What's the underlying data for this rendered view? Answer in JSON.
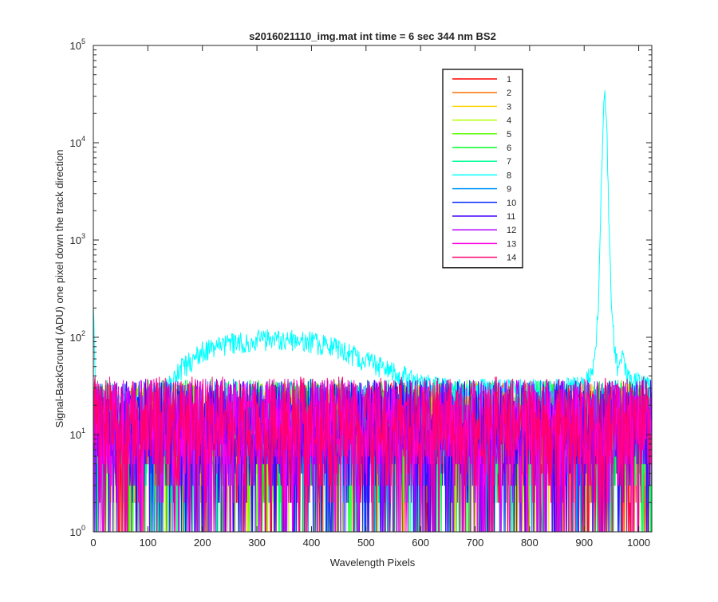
{
  "chart_data": {
    "type": "line",
    "title": "s2016021110_img.mat int time = 6 sec  344 nm BS2",
    "xlabel": "Wavelength Pixels",
    "ylabel": "Signal-BackGround (ADU) one pixel down the track direction",
    "x_range": [
      0,
      1024
    ],
    "y_range": [
      1,
      100000
    ],
    "y_scale": "log",
    "x_ticks": [
      "0",
      "100",
      "200",
      "300",
      "400",
      "500",
      "600",
      "700",
      "800",
      "900",
      "1000"
    ],
    "y_tick_bases": [
      "10",
      "10",
      "10",
      "10",
      "10",
      "10"
    ],
    "y_tick_exps": [
      "0",
      "1",
      "2",
      "3",
      "4",
      "5"
    ],
    "grid": false,
    "legend_position": "top-right",
    "series": [
      {
        "name": "1",
        "color": "#ff0000",
        "noise_level": 12
      },
      {
        "name": "2",
        "color": "#ff6f00",
        "noise_level": 12
      },
      {
        "name": "3",
        "color": "#ffd400",
        "noise_level": 12
      },
      {
        "name": "4",
        "color": "#b4ff00",
        "noise_level": 12
      },
      {
        "name": "5",
        "color": "#5cff00",
        "noise_level": 13
      },
      {
        "name": "6",
        "color": "#00ff27",
        "noise_level": 13
      },
      {
        "name": "7",
        "color": "#00ff97",
        "noise_level": 13
      },
      {
        "name": "8",
        "color": "#00ffff",
        "noise_level": 14,
        "profile": {
          "x": [
            0,
            2,
            5,
            10,
            60,
            100,
            130,
            160,
            200,
            250,
            300,
            350,
            400,
            450,
            500,
            550,
            600,
            650,
            700,
            750,
            800,
            850,
            900,
            915,
            925,
            930,
            935,
            938,
            941,
            945,
            950,
            958,
            965,
            970,
            980,
            1024
          ],
          "y": [
            250,
            60,
            30,
            20,
            22,
            24,
            30,
            48,
            72,
            88,
            96,
            98,
            92,
            78,
            58,
            45,
            34,
            30,
            30,
            30,
            30,
            30,
            32,
            45,
            150,
            2000,
            20000,
            32000,
            18000,
            2000,
            200,
            60,
            45,
            60,
            40,
            30
          ]
        }
      },
      {
        "name": "9",
        "color": "#0097ff",
        "noise_level": 13
      },
      {
        "name": "10",
        "color": "#0027ff",
        "noise_level": 13
      },
      {
        "name": "11",
        "color": "#4600ff",
        "noise_level": 13
      },
      {
        "name": "12",
        "color": "#b400ff",
        "noise_level": 13
      },
      {
        "name": "13",
        "color": "#ff00e6",
        "noise_level": 13
      },
      {
        "name": "14",
        "color": "#ff0070",
        "noise_level": 14
      }
    ]
  }
}
